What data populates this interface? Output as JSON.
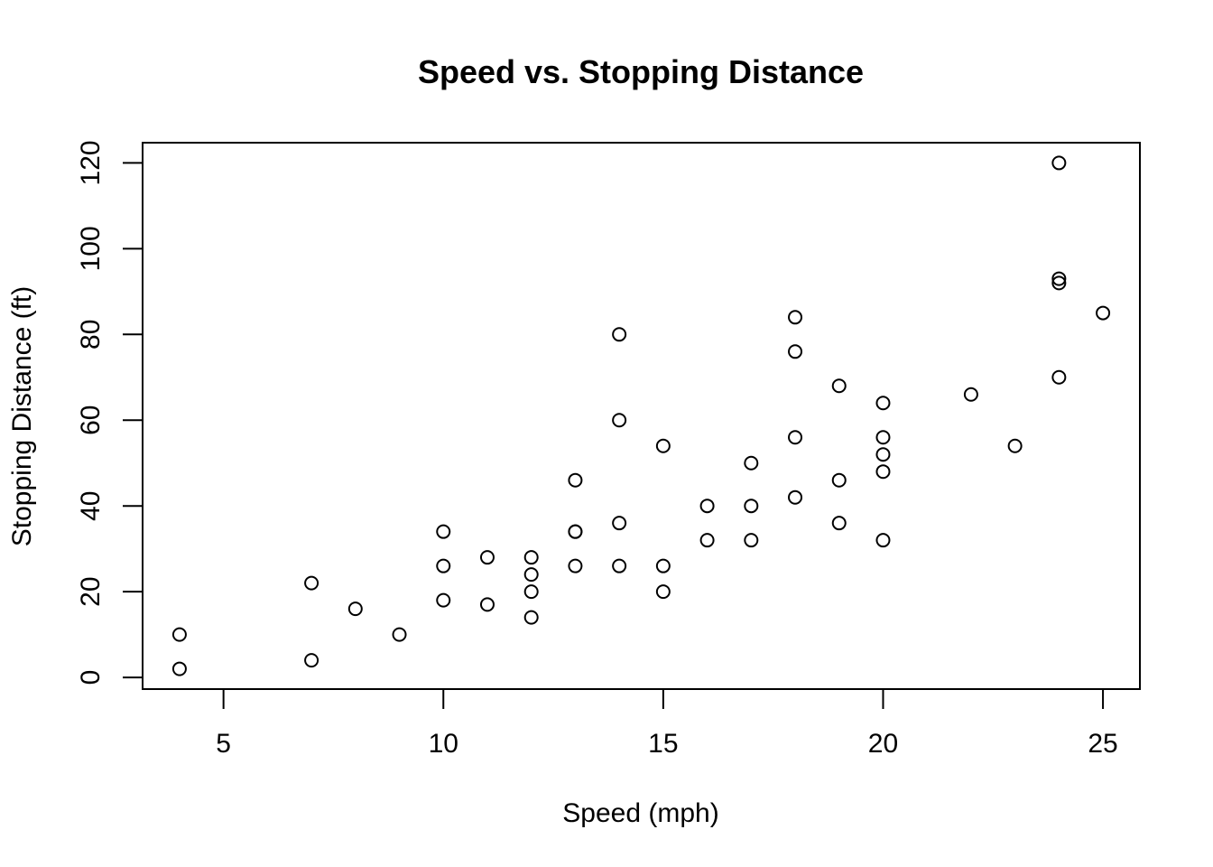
{
  "chart_data": {
    "type": "scatter",
    "title": "Speed vs. Stopping Distance",
    "xlabel": "Speed (mph)",
    "ylabel": "Stopping Distance (ft)",
    "xlim": [
      3.16,
      25.84
    ],
    "ylim": [
      -2.72,
      124.72
    ],
    "xticks": [
      5,
      10,
      15,
      20,
      25
    ],
    "yticks": [
      0,
      20,
      40,
      60,
      80,
      100,
      120
    ],
    "xtick_labels": [
      "5",
      "10",
      "15",
      "20",
      "25"
    ],
    "ytick_labels": [
      "0",
      "20",
      "40",
      "60",
      "80",
      "100",
      "120"
    ],
    "grid": false,
    "legend": null,
    "points": [
      [
        4,
        2
      ],
      [
        4,
        10
      ],
      [
        7,
        4
      ],
      [
        7,
        22
      ],
      [
        8,
        16
      ],
      [
        9,
        10
      ],
      [
        10,
        18
      ],
      [
        10,
        26
      ],
      [
        10,
        34
      ],
      [
        11,
        17
      ],
      [
        11,
        28
      ],
      [
        12,
        14
      ],
      [
        12,
        20
      ],
      [
        12,
        24
      ],
      [
        12,
        28
      ],
      [
        13,
        26
      ],
      [
        13,
        34
      ],
      [
        13,
        34
      ],
      [
        13,
        46
      ],
      [
        14,
        26
      ],
      [
        14,
        36
      ],
      [
        14,
        60
      ],
      [
        14,
        80
      ],
      [
        15,
        20
      ],
      [
        15,
        26
      ],
      [
        15,
        54
      ],
      [
        16,
        32
      ],
      [
        16,
        40
      ],
      [
        17,
        32
      ],
      [
        17,
        40
      ],
      [
        17,
        50
      ],
      [
        18,
        42
      ],
      [
        18,
        56
      ],
      [
        18,
        76
      ],
      [
        18,
        84
      ],
      [
        19,
        36
      ],
      [
        19,
        46
      ],
      [
        19,
        68
      ],
      [
        20,
        32
      ],
      [
        20,
        48
      ],
      [
        20,
        52
      ],
      [
        20,
        56
      ],
      [
        20,
        64
      ],
      [
        22,
        66
      ],
      [
        23,
        54
      ],
      [
        24,
        70
      ],
      [
        24,
        92
      ],
      [
        24,
        93
      ],
      [
        24,
        120
      ],
      [
        25,
        85
      ]
    ]
  }
}
